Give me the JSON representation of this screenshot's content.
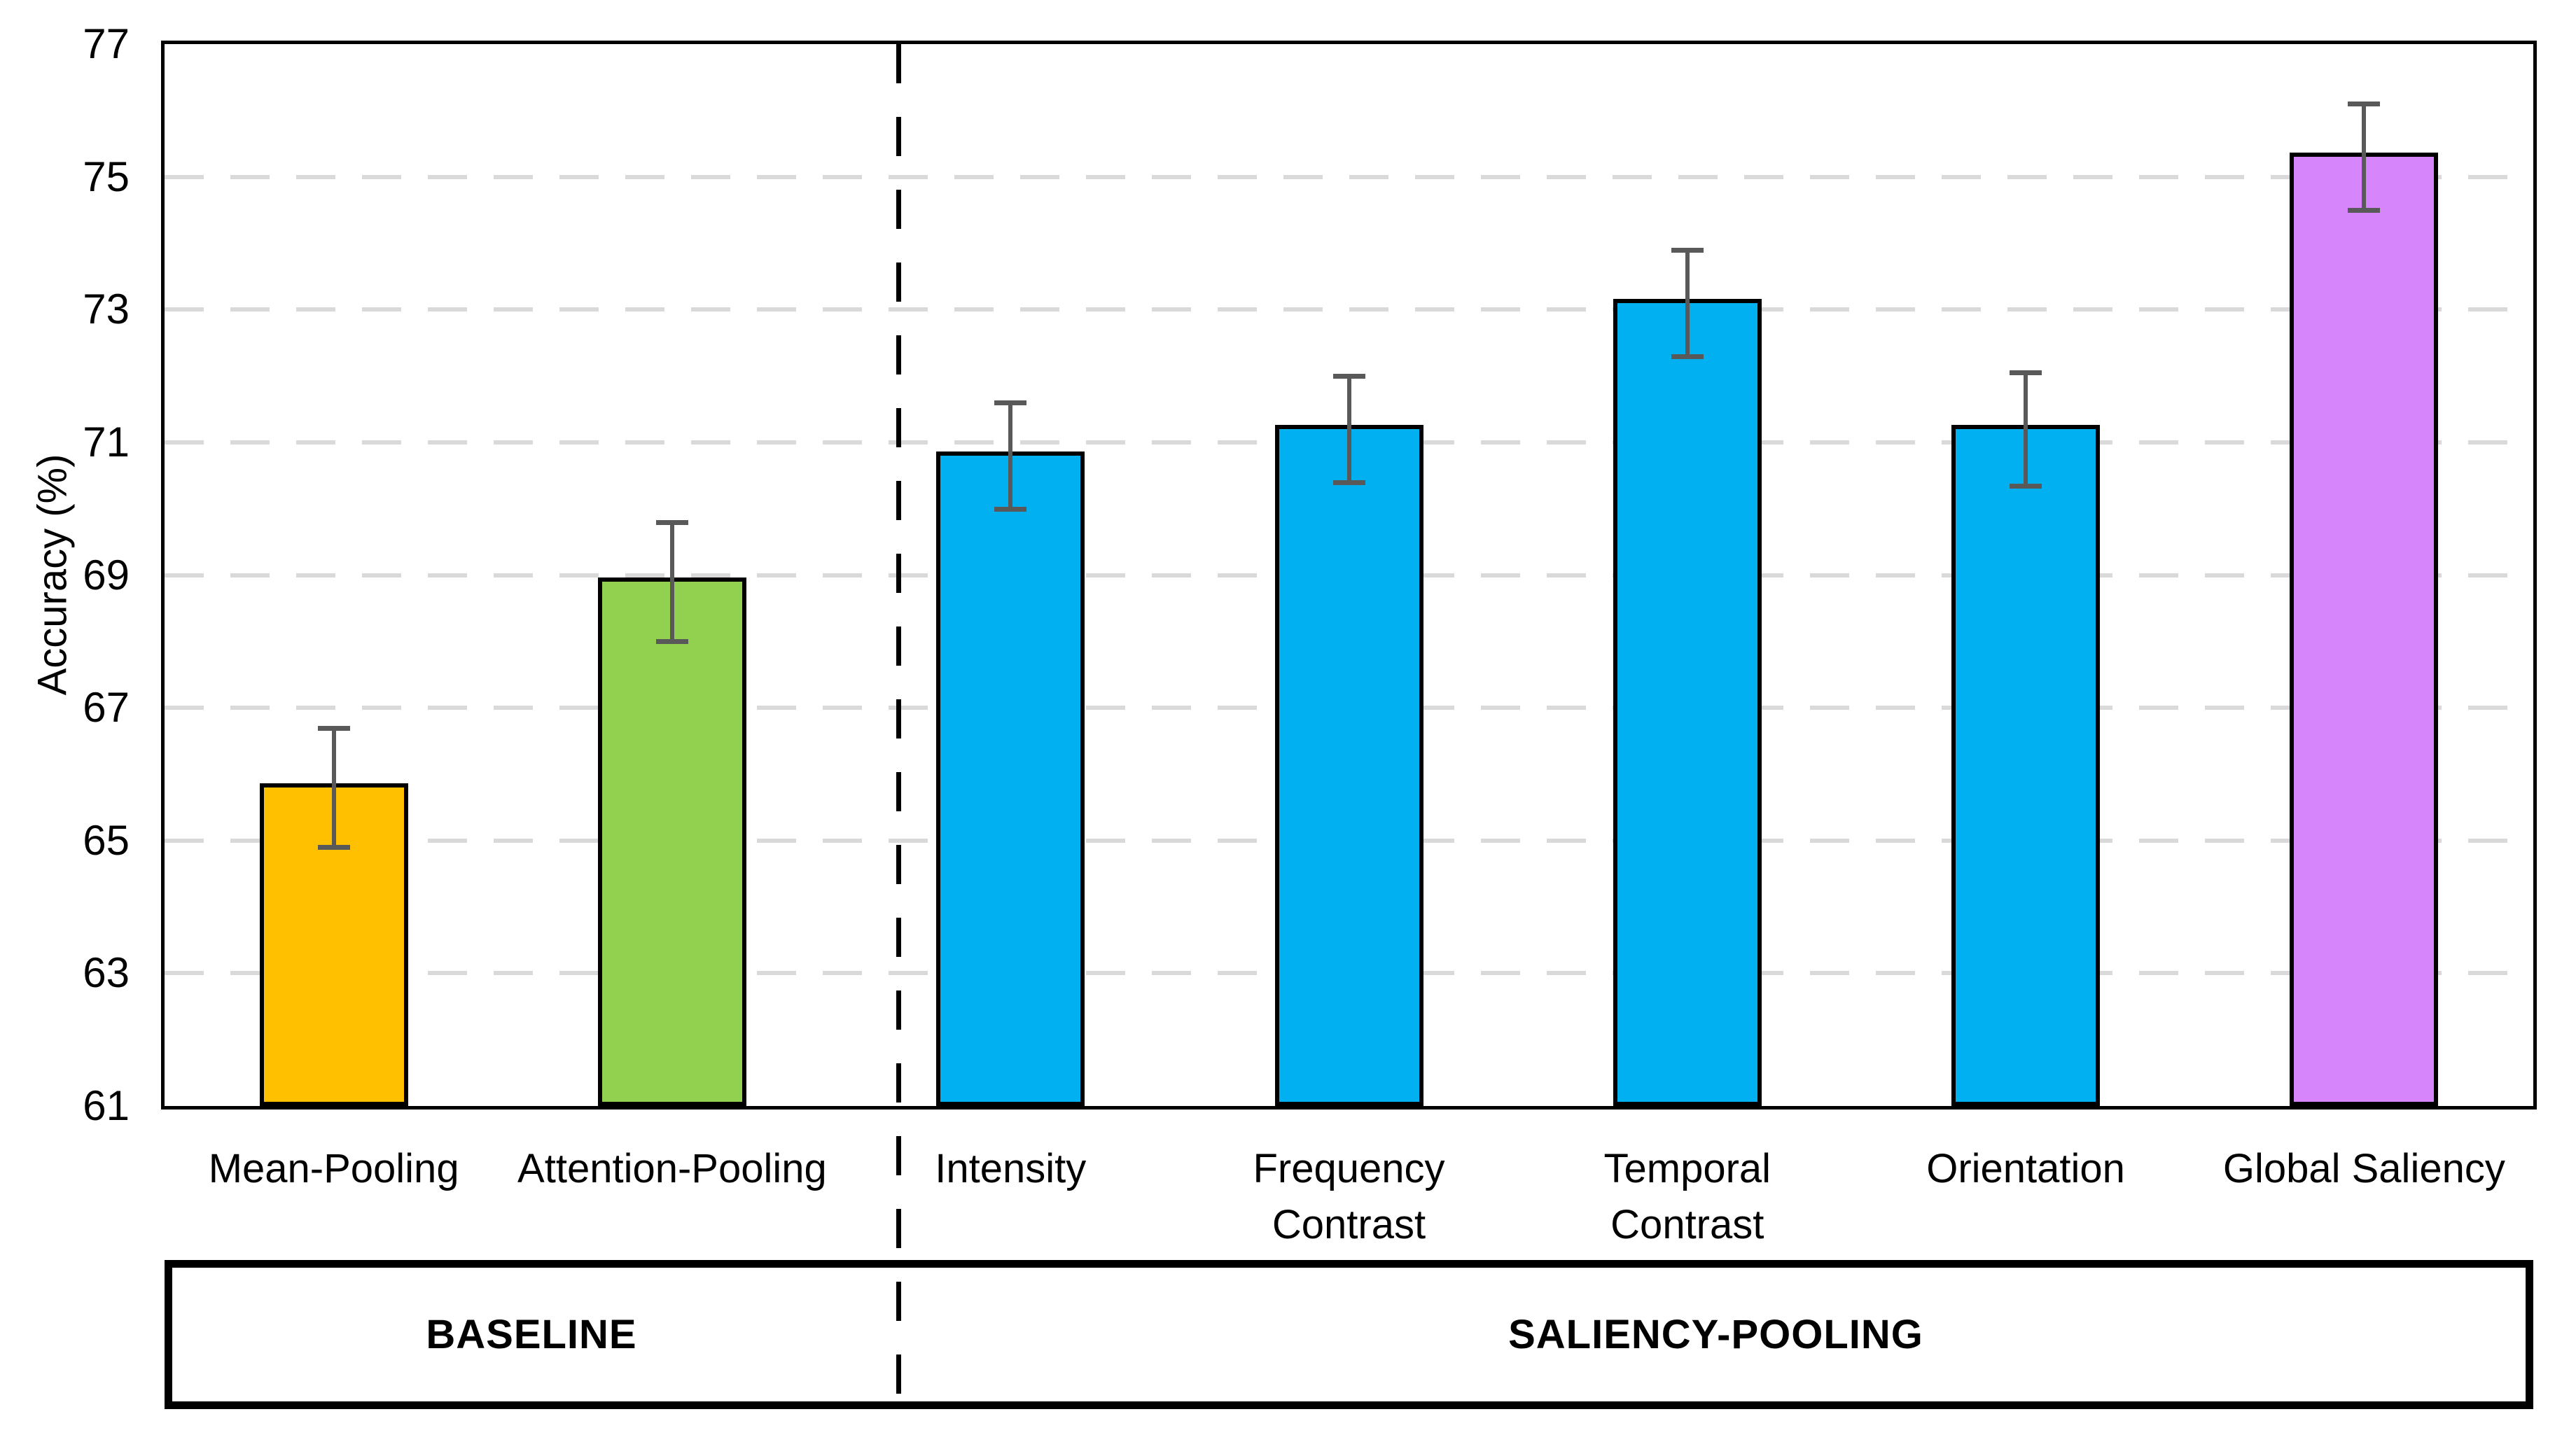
{
  "chart_data": {
    "type": "bar",
    "title": "",
    "xlabel": "",
    "ylabel": "Accuracy (%)",
    "ylim": [
      61,
      77
    ],
    "yticks": [
      61,
      63,
      65,
      67,
      69,
      71,
      73,
      75,
      77
    ],
    "grid": "horizontal-dashed",
    "legend": "none",
    "categories": [
      "Mean-Pooling",
      "Attention-Pooling",
      "Intensity",
      "Frequency\nContrast",
      "Temporal\nContrast",
      "Orientation",
      "Global Saliency"
    ],
    "values": [
      65.8,
      68.9,
      70.8,
      71.2,
      73.1,
      71.2,
      75.3
    ],
    "errors": [
      0.9,
      0.9,
      0.8,
      0.8,
      0.8,
      0.85,
      0.8
    ],
    "bar_colors": [
      "#FFC000",
      "#92D050",
      "#00B0F0",
      "#00B0F0",
      "#00B0F0",
      "#00B0F0",
      "#D685FA"
    ],
    "error_bar_color": "#595959",
    "gridline_color": "#D9D9D9",
    "axis_border_color": "#000000",
    "groups": [
      {
        "label": "BASELINE",
        "from_index": 0,
        "to_index": 1
      },
      {
        "label": "SALIENCY-POOLING",
        "from_index": 2,
        "to_index": 6
      }
    ],
    "separator": {
      "style": "dashed-black-vertical",
      "between": [
        "Attention-Pooling",
        "Intensity"
      ]
    }
  }
}
